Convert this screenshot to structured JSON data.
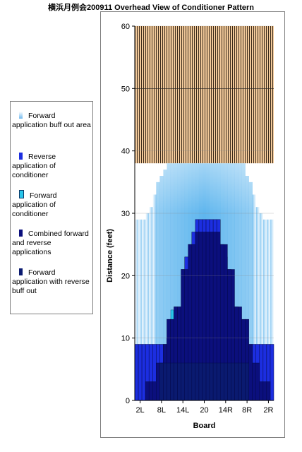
{
  "chart_data": {
    "type": "bar",
    "title": "横浜月例会200911 Overhead View of Conditioner Pattern",
    "xlabel": "Board",
    "ylabel": "Distance (feet)",
    "ylim": [
      0,
      60
    ],
    "yticks": [
      0,
      10,
      20,
      30,
      40,
      50,
      60
    ],
    "xtick_labels": [
      "2L",
      "8L",
      "14L",
      "20",
      "14R",
      "8R",
      "2R"
    ],
    "xtick_boards": [
      2,
      8,
      14,
      20,
      26,
      32,
      38
    ],
    "boards": [
      1,
      2,
      3,
      4,
      5,
      6,
      7,
      8,
      9,
      10,
      11,
      12,
      13,
      14,
      15,
      16,
      17,
      18,
      19,
      20,
      21,
      22,
      23,
      24,
      25,
      26,
      27,
      28,
      29,
      30,
      31,
      32,
      33,
      34,
      35,
      36,
      37,
      38,
      39
    ],
    "oil_end_feet": 38,
    "lane_length_feet": 60,
    "series": [
      {
        "name": "Forward application buff out area",
        "color": "#69b9ec",
        "values": [
          29,
          29,
          29,
          30,
          31,
          33,
          35,
          36,
          37,
          38,
          38,
          38,
          38,
          38,
          38,
          38,
          38,
          38,
          38,
          38,
          38,
          38,
          38,
          38,
          38,
          38,
          38,
          38,
          38,
          38,
          38,
          36,
          35,
          33,
          31,
          30,
          29,
          29,
          29
        ]
      },
      {
        "name": "Reverse application of conditioner",
        "color": "#1c2ee0",
        "values": [
          9,
          9,
          9,
          9,
          9,
          9,
          9,
          9,
          9,
          10,
          13,
          15,
          15,
          21,
          23,
          25,
          27,
          29,
          29,
          29,
          29,
          29,
          29,
          29,
          25,
          23,
          21,
          15,
          15,
          13,
          10,
          9,
          9,
          9,
          9,
          9,
          9,
          9,
          9
        ]
      },
      {
        "name": "Forward application of conditioner",
        "color": "#29c5ea",
        "values": [
          0,
          0,
          0,
          0,
          0,
          0,
          0,
          0,
          0,
          0,
          14.5,
          0,
          0,
          0,
          0,
          0,
          0,
          0,
          0,
          0,
          0,
          0,
          0,
          0,
          0,
          0,
          0,
          0,
          0,
          0,
          0,
          0,
          0,
          0,
          0,
          0,
          0,
          0,
          0
        ]
      },
      {
        "name": "Combined forward and reverse applications",
        "color": "#0b0f7d",
        "values": [
          0,
          0,
          0,
          3,
          3,
          3,
          6,
          6,
          9,
          13,
          13,
          15,
          15,
          21,
          21,
          25,
          25,
          27,
          27,
          27,
          27,
          27,
          27,
          27,
          25,
          25,
          21,
          21,
          15,
          15,
          13,
          13,
          9,
          6,
          6,
          3,
          3,
          3,
          0
        ]
      },
      {
        "name": "Forward application with reverse buff out",
        "color": "#0a1a70",
        "values": [
          0,
          0,
          0,
          0,
          0,
          0,
          0,
          6,
          6,
          6,
          6,
          6,
          6,
          6,
          6,
          6,
          6,
          6,
          6,
          6,
          6,
          6,
          6,
          6,
          6,
          6,
          6,
          6,
          6,
          6,
          6,
          6,
          0,
          0,
          0,
          0,
          0,
          0,
          0
        ]
      }
    ],
    "legend_position": "left",
    "grid": true
  }
}
